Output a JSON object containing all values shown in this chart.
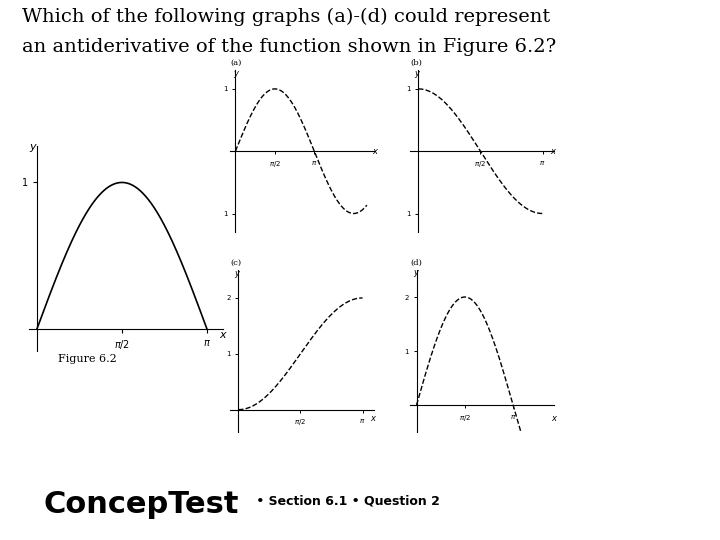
{
  "title_line1": "Which of the following graphs (a)-(d) could represent",
  "title_line2": "an antiderivative of the function shown in Figure 6.2?",
  "title_fontsize": 14,
  "background_color": "#ffffff",
  "fig_caption": "Figure 6.2",
  "footer_text": "ConcepTest",
  "footer_sub": " • Section 6.1 • Question 2",
  "label_a": "(a)",
  "label_b": "(b)",
  "label_c": "(c)",
  "label_d": "(d)"
}
